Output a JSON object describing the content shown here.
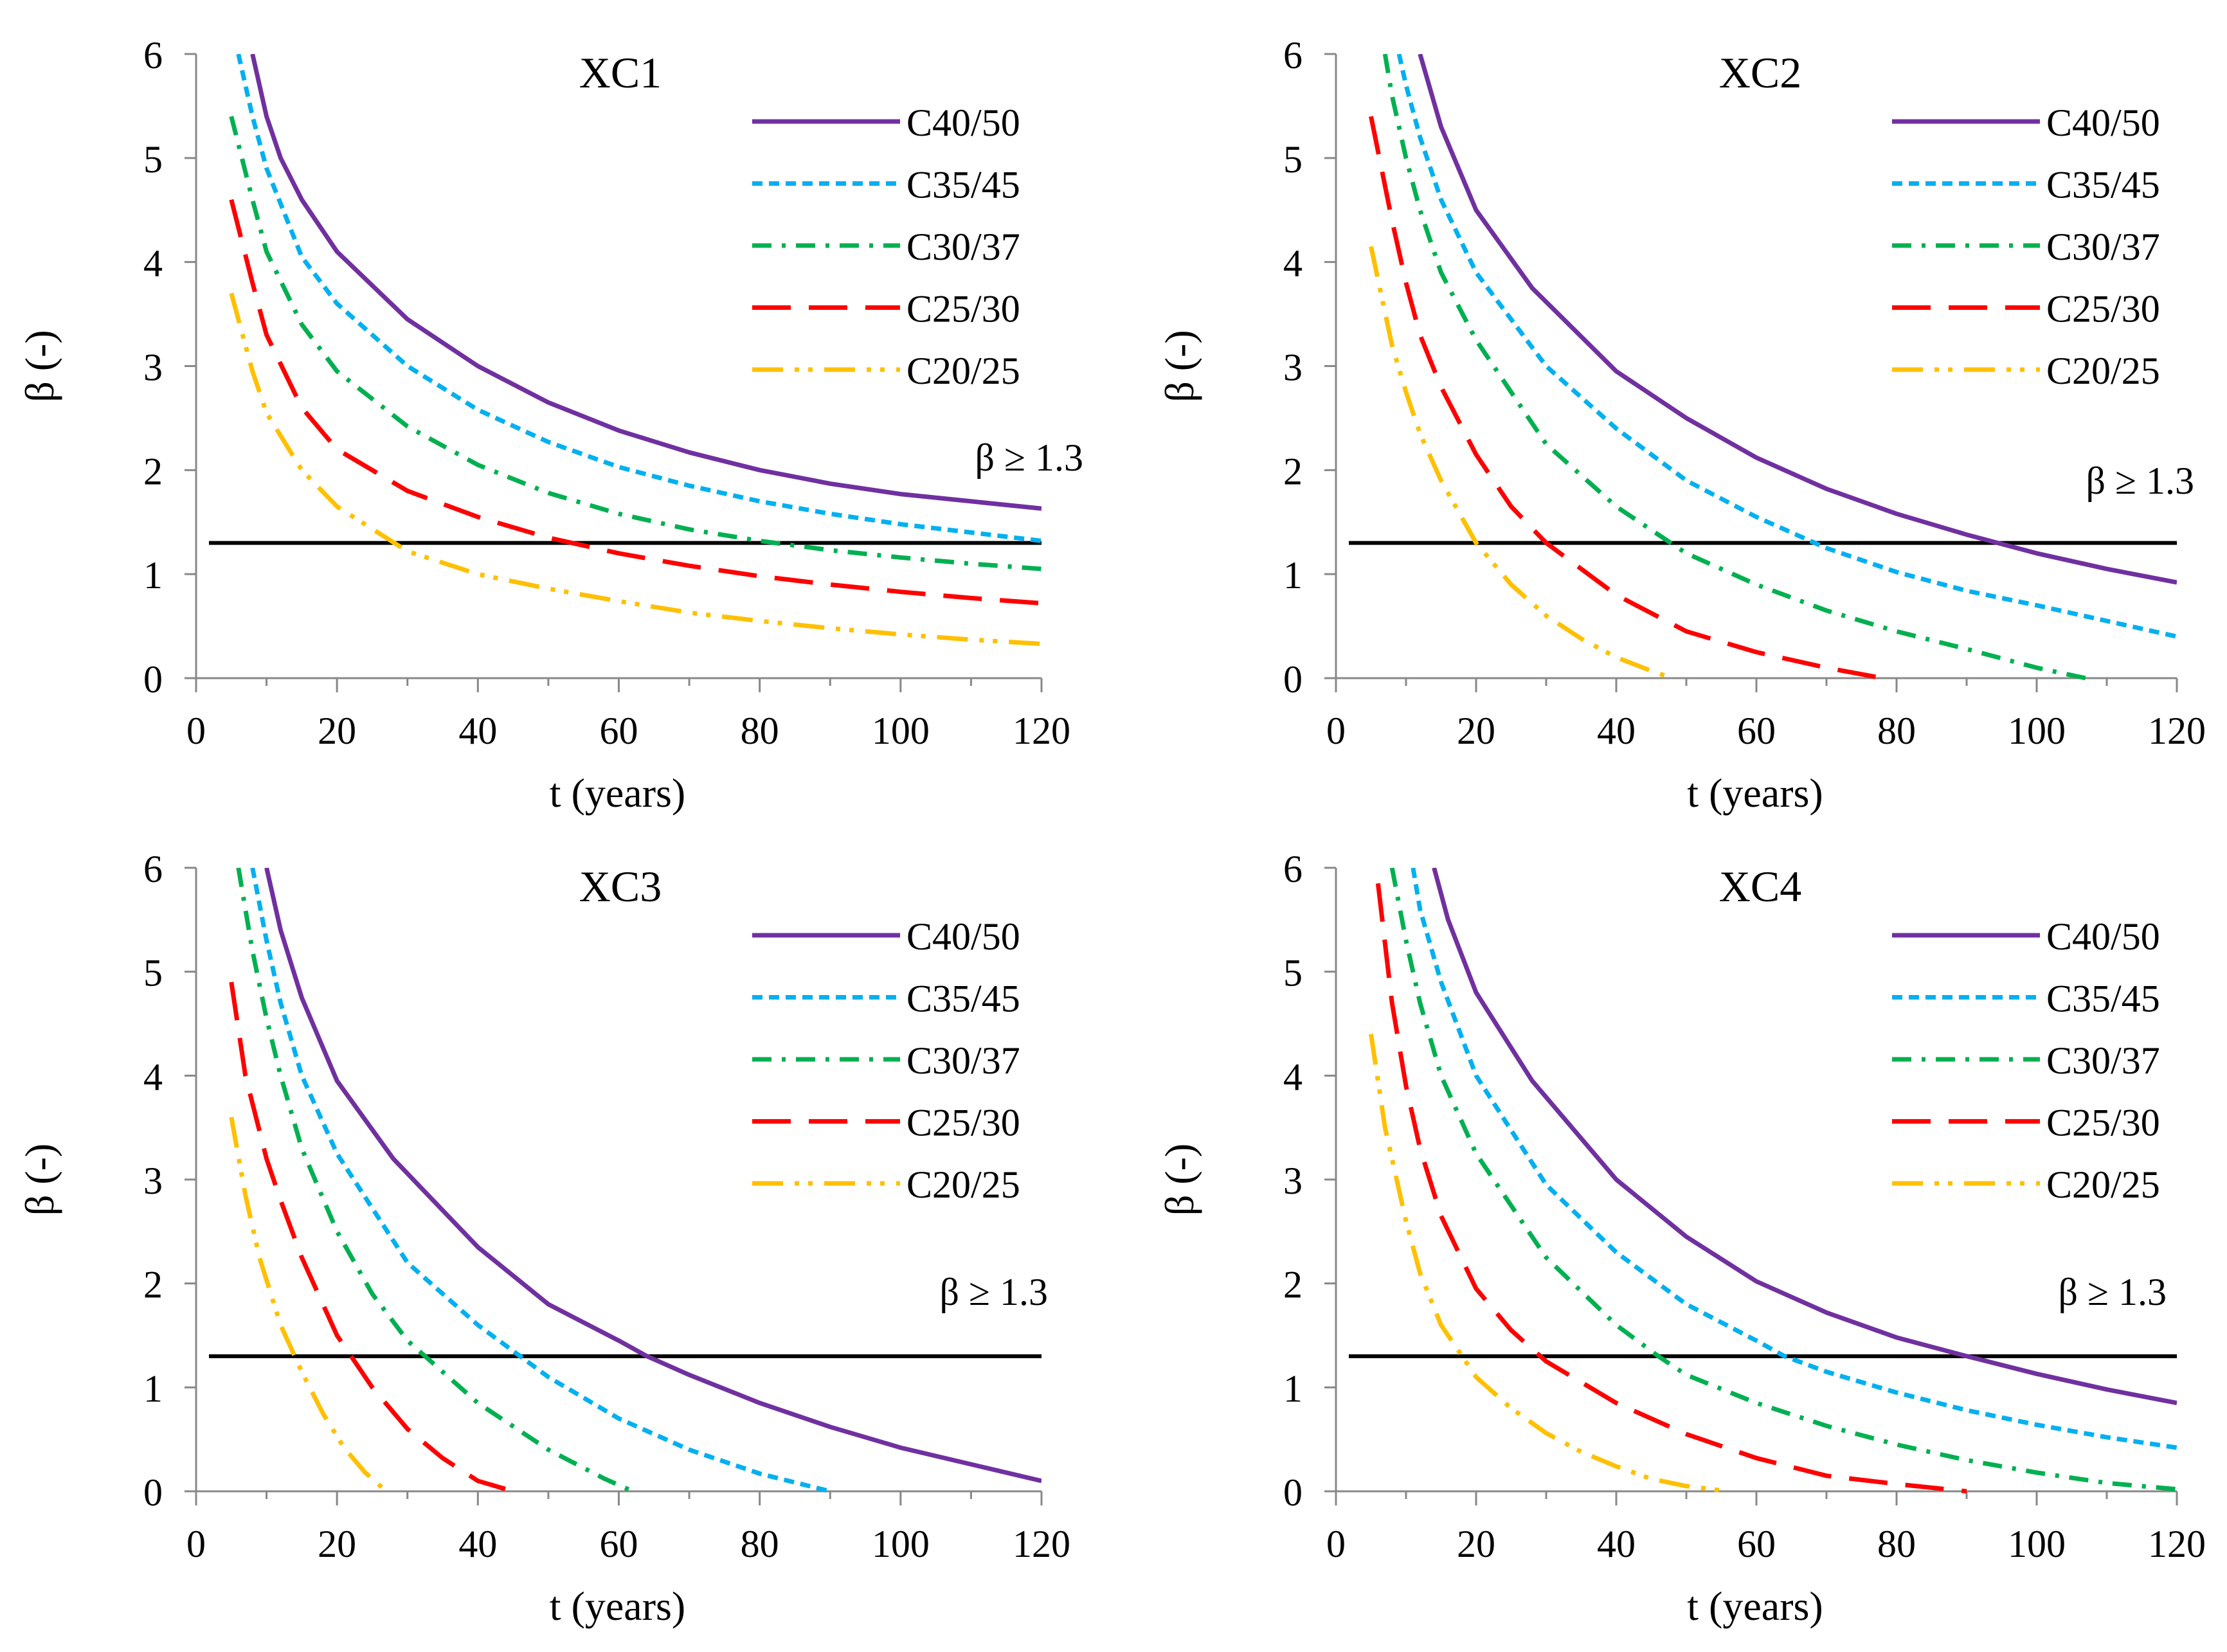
{
  "chart_data": [
    {
      "type": "line",
      "title": "XC1",
      "xlabel": "t (years)",
      "ylabel": "β (-)",
      "xlim": [
        0,
        120
      ],
      "ylim": [
        0,
        6
      ],
      "xticks": [
        "0",
        "20",
        "40",
        "60",
        "80",
        "100",
        "120"
      ],
      "yticks": [
        "0",
        "1",
        "2",
        "3",
        "4",
        "5",
        "6"
      ],
      "threshold": {
        "value": 1.3,
        "label": "β ≥ 1.3",
        "color": "#000000"
      },
      "series": [
        {
          "name": "C40/50",
          "color": "#7030A0",
          "dash": "solid",
          "x": [
            8,
            10,
            12,
            15,
            20,
            30,
            40,
            50,
            60,
            70,
            80,
            90,
            100,
            110,
            120
          ],
          "y": [
            6.0,
            5.4,
            5.0,
            4.6,
            4.1,
            3.45,
            3.0,
            2.65,
            2.38,
            2.17,
            2.0,
            1.87,
            1.77,
            1.7,
            1.63
          ]
        },
        {
          "name": "C35/45",
          "color": "#00B0F0",
          "dash": "short",
          "x": [
            6,
            8,
            10,
            15,
            20,
            30,
            40,
            50,
            60,
            70,
            80,
            90,
            100,
            110,
            120
          ],
          "y": [
            6.0,
            5.4,
            4.9,
            4.05,
            3.6,
            3.0,
            2.58,
            2.27,
            2.03,
            1.85,
            1.7,
            1.58,
            1.48,
            1.4,
            1.32
          ]
        },
        {
          "name": "C30/37",
          "color": "#00B050",
          "dash": "dashdot",
          "x": [
            5,
            8,
            10,
            15,
            20,
            30,
            40,
            50,
            60,
            70,
            80,
            90,
            100,
            110,
            120
          ],
          "y": [
            5.4,
            4.6,
            4.1,
            3.4,
            2.95,
            2.42,
            2.05,
            1.78,
            1.58,
            1.43,
            1.32,
            1.23,
            1.16,
            1.1,
            1.05
          ]
        },
        {
          "name": "C25/30",
          "color": "#FF0000",
          "dash": "long",
          "x": [
            5,
            8,
            10,
            15,
            20,
            30,
            40,
            50,
            60,
            70,
            80,
            90,
            100,
            110,
            120
          ],
          "y": [
            4.6,
            3.8,
            3.3,
            2.6,
            2.2,
            1.8,
            1.55,
            1.35,
            1.2,
            1.08,
            0.98,
            0.9,
            0.83,
            0.77,
            0.72
          ]
        },
        {
          "name": "C20/25",
          "color": "#FFC000",
          "dash": "dashdotdot",
          "x": [
            5,
            8,
            10,
            15,
            20,
            30,
            40,
            50,
            60,
            70,
            80,
            90,
            100,
            110,
            120
          ],
          "y": [
            3.7,
            2.95,
            2.55,
            2.0,
            1.65,
            1.22,
            1.0,
            0.86,
            0.74,
            0.63,
            0.55,
            0.48,
            0.42,
            0.37,
            0.33
          ]
        }
      ]
    },
    {
      "type": "line",
      "title": "XC2",
      "xlabel": "t (years)",
      "ylabel": "β (-)",
      "xlim": [
        0,
        120
      ],
      "ylim": [
        0,
        6
      ],
      "xticks": [
        "0",
        "20",
        "40",
        "60",
        "80",
        "100",
        "120"
      ],
      "yticks": [
        "0",
        "1",
        "2",
        "3",
        "4",
        "5",
        "6"
      ],
      "threshold": {
        "value": 1.3,
        "label": "β ≥ 1.3",
        "color": "#000000"
      },
      "series": [
        {
          "name": "C40/50",
          "color": "#7030A0",
          "dash": "solid",
          "x": [
            12,
            15,
            20,
            28,
            40,
            50,
            60,
            70,
            80,
            90,
            100,
            110,
            120
          ],
          "y": [
            6.0,
            5.3,
            4.5,
            3.75,
            2.95,
            2.5,
            2.12,
            1.82,
            1.58,
            1.38,
            1.2,
            1.05,
            0.92
          ]
        },
        {
          "name": "C35/45",
          "color": "#00B0F0",
          "dash": "short",
          "x": [
            9,
            10,
            12,
            15,
            20,
            30,
            40,
            50,
            60,
            70,
            80,
            90,
            100,
            110,
            120
          ],
          "y": [
            6.0,
            5.7,
            5.2,
            4.6,
            3.9,
            3.0,
            2.4,
            1.9,
            1.55,
            1.25,
            1.02,
            0.84,
            0.7,
            0.55,
            0.4
          ]
        },
        {
          "name": "C30/37",
          "color": "#00B050",
          "dash": "dashdot",
          "x": [
            7,
            8,
            10,
            12,
            15,
            20,
            30,
            40,
            50,
            60,
            70,
            80,
            90,
            100,
            107
          ],
          "y": [
            6.0,
            5.6,
            5.0,
            4.5,
            3.9,
            3.25,
            2.25,
            1.65,
            1.2,
            0.9,
            0.65,
            0.45,
            0.28,
            0.1,
            0.0
          ]
        },
        {
          "name": "C25/30",
          "color": "#FF0000",
          "dash": "long",
          "x": [
            5,
            8,
            10,
            12,
            15,
            20,
            25,
            30,
            40,
            50,
            60,
            70,
            78
          ],
          "y": [
            5.4,
            4.4,
            3.8,
            3.3,
            2.8,
            2.15,
            1.65,
            1.3,
            0.8,
            0.45,
            0.25,
            0.1,
            0.0
          ]
        },
        {
          "name": "C20/25",
          "color": "#FFC000",
          "dash": "dashdotdot",
          "x": [
            5,
            8,
            10,
            12,
            15,
            20,
            25,
            30,
            35,
            40,
            45,
            48
          ],
          "y": [
            4.15,
            3.2,
            2.75,
            2.35,
            1.9,
            1.3,
            0.9,
            0.6,
            0.38,
            0.2,
            0.07,
            0.0
          ]
        }
      ]
    },
    {
      "type": "line",
      "title": "XC3",
      "xlabel": "t (years)",
      "ylabel": "β (-)",
      "xlim": [
        0,
        120
      ],
      "ylim": [
        0,
        6
      ],
      "xticks": [
        "0",
        "20",
        "40",
        "60",
        "80",
        "100",
        "120"
      ],
      "yticks": [
        "0",
        "1",
        "2",
        "3",
        "4",
        "5",
        "6"
      ],
      "threshold": {
        "value": 1.3,
        "label": "β ≥ 1.3",
        "color": "#000000"
      },
      "series": [
        {
          "name": "C40/50",
          "color": "#7030A0",
          "dash": "solid",
          "x": [
            10,
            12,
            15,
            20,
            28,
            40,
            50,
            60,
            64,
            70,
            80,
            90,
            100,
            110,
            120
          ],
          "y": [
            6.0,
            5.4,
            4.75,
            3.95,
            3.2,
            2.35,
            1.8,
            1.45,
            1.3,
            1.12,
            0.85,
            0.62,
            0.42,
            0.26,
            0.1
          ]
        },
        {
          "name": "C35/45",
          "color": "#00B0F0",
          "dash": "short",
          "x": [
            8,
            10,
            12,
            15,
            20,
            30,
            40,
            46,
            50,
            60,
            70,
            80,
            90
          ],
          "y": [
            6.0,
            5.3,
            4.7,
            4.0,
            3.25,
            2.2,
            1.6,
            1.3,
            1.1,
            0.7,
            0.4,
            0.17,
            0.0
          ]
        },
        {
          "name": "C30/37",
          "color": "#00B050",
          "dash": "dashdot",
          "x": [
            6,
            8,
            10,
            12,
            15,
            20,
            25,
            30,
            40,
            50,
            58,
            62
          ],
          "y": [
            6.0,
            5.2,
            4.55,
            4.0,
            3.3,
            2.5,
            1.9,
            1.45,
            0.85,
            0.4,
            0.12,
            0.0
          ]
        },
        {
          "name": "C25/30",
          "color": "#FF0000",
          "dash": "long",
          "x": [
            5,
            7,
            10,
            12,
            15,
            20,
            25,
            30,
            35,
            40,
            45
          ],
          "y": [
            4.9,
            4.0,
            3.2,
            2.8,
            2.25,
            1.5,
            1.0,
            0.6,
            0.32,
            0.1,
            0.0
          ]
        },
        {
          "name": "C20/25",
          "color": "#FFC000",
          "dash": "dashdotdot",
          "x": [
            5,
            7,
            9,
            12,
            15,
            18,
            21,
            24,
            27
          ],
          "y": [
            3.6,
            2.85,
            2.25,
            1.6,
            1.15,
            0.75,
            0.42,
            0.18,
            0.0
          ]
        }
      ]
    },
    {
      "type": "line",
      "title": "XC4",
      "xlabel": "t (years)",
      "ylabel": "β (-)",
      "xlim": [
        0,
        120
      ],
      "ylim": [
        0,
        6
      ],
      "xticks": [
        "0",
        "20",
        "40",
        "60",
        "80",
        "100",
        "120"
      ],
      "yticks": [
        "0",
        "1",
        "2",
        "3",
        "4",
        "5",
        "6"
      ],
      "threshold": {
        "value": 1.3,
        "label": "β ≥ 1.3",
        "color": "#000000"
      },
      "series": [
        {
          "name": "C40/50",
          "color": "#7030A0",
          "dash": "solid",
          "x": [
            14,
            16,
            20,
            28,
            40,
            50,
            60,
            70,
            80,
            90,
            100,
            110,
            120
          ],
          "y": [
            6.0,
            5.5,
            4.8,
            3.95,
            3.0,
            2.45,
            2.02,
            1.72,
            1.48,
            1.3,
            1.13,
            0.98,
            0.85
          ]
        },
        {
          "name": "C35/45",
          "color": "#00B0F0",
          "dash": "short",
          "x": [
            11,
            12,
            15,
            20,
            30,
            40,
            50,
            60,
            64,
            70,
            80,
            90,
            100,
            110,
            120
          ],
          "y": [
            6.0,
            5.6,
            4.9,
            4.0,
            2.95,
            2.3,
            1.8,
            1.45,
            1.3,
            1.15,
            0.95,
            0.78,
            0.64,
            0.52,
            0.42
          ]
        },
        {
          "name": "C30/37",
          "color": "#00B050",
          "dash": "dashdot",
          "x": [
            8,
            10,
            12,
            15,
            20,
            30,
            40,
            46,
            50,
            60,
            70,
            80,
            90,
            100,
            110,
            120
          ],
          "y": [
            6.0,
            5.3,
            4.7,
            4.0,
            3.25,
            2.25,
            1.6,
            1.3,
            1.12,
            0.85,
            0.63,
            0.45,
            0.3,
            0.18,
            0.08,
            0.02
          ]
        },
        {
          "name": "C25/30",
          "color": "#FF0000",
          "dash": "long",
          "x": [
            6,
            8,
            10,
            12,
            15,
            20,
            25,
            30,
            40,
            50,
            60,
            70,
            80,
            90
          ],
          "y": [
            5.85,
            4.7,
            3.9,
            3.3,
            2.65,
            1.95,
            1.55,
            1.25,
            0.85,
            0.55,
            0.32,
            0.15,
            0.07,
            0.0
          ]
        },
        {
          "name": "C20/25",
          "color": "#FFC000",
          "dash": "dashdotdot",
          "x": [
            5,
            7,
            10,
            12,
            15,
            18,
            20,
            25,
            30,
            35,
            40,
            45,
            50,
            56
          ],
          "y": [
            4.4,
            3.5,
            2.6,
            2.1,
            1.6,
            1.3,
            1.1,
            0.8,
            0.56,
            0.38,
            0.24,
            0.12,
            0.05,
            0.0
          ]
        }
      ]
    }
  ]
}
